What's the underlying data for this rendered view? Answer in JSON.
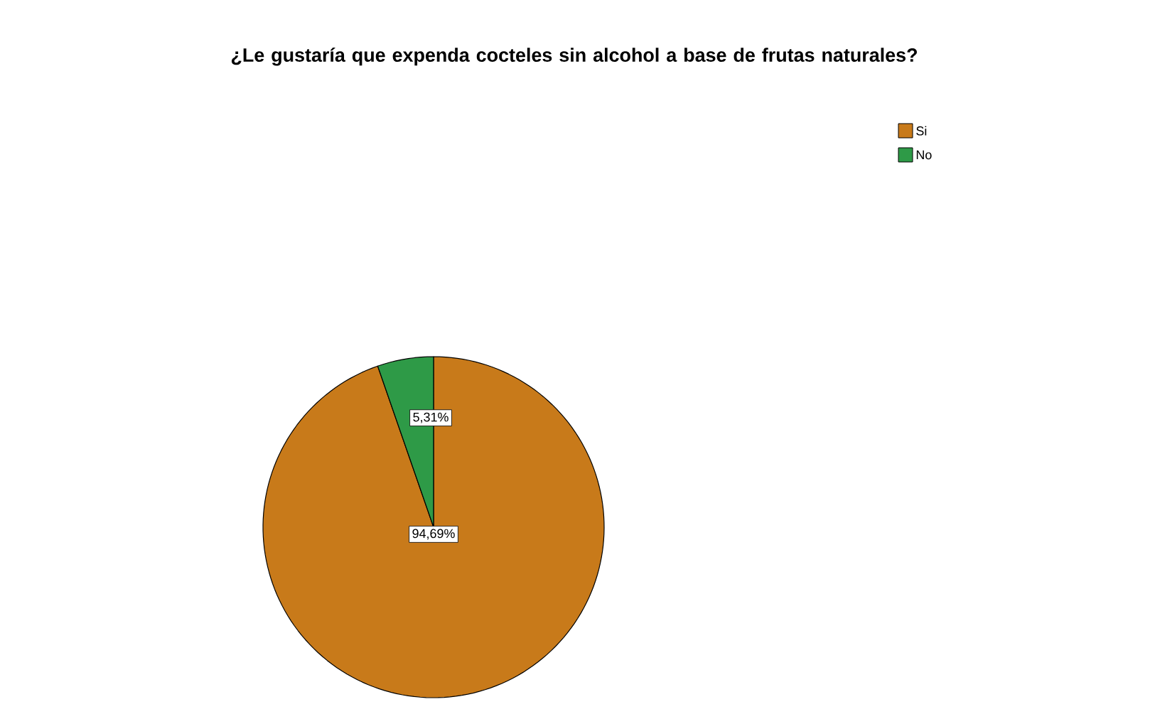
{
  "chart_data": {
    "type": "pie",
    "title": "¿Le gustaría que expenda cocteles sin alcohol a base de frutas naturales?",
    "categories": [
      "Si",
      "No"
    ],
    "values": [
      94.69,
      5.31
    ],
    "colors": [
      "#c87a1a",
      "#2e9a47"
    ],
    "value_labels": [
      "94,69%",
      "5,31%"
    ],
    "legend": "top right"
  }
}
